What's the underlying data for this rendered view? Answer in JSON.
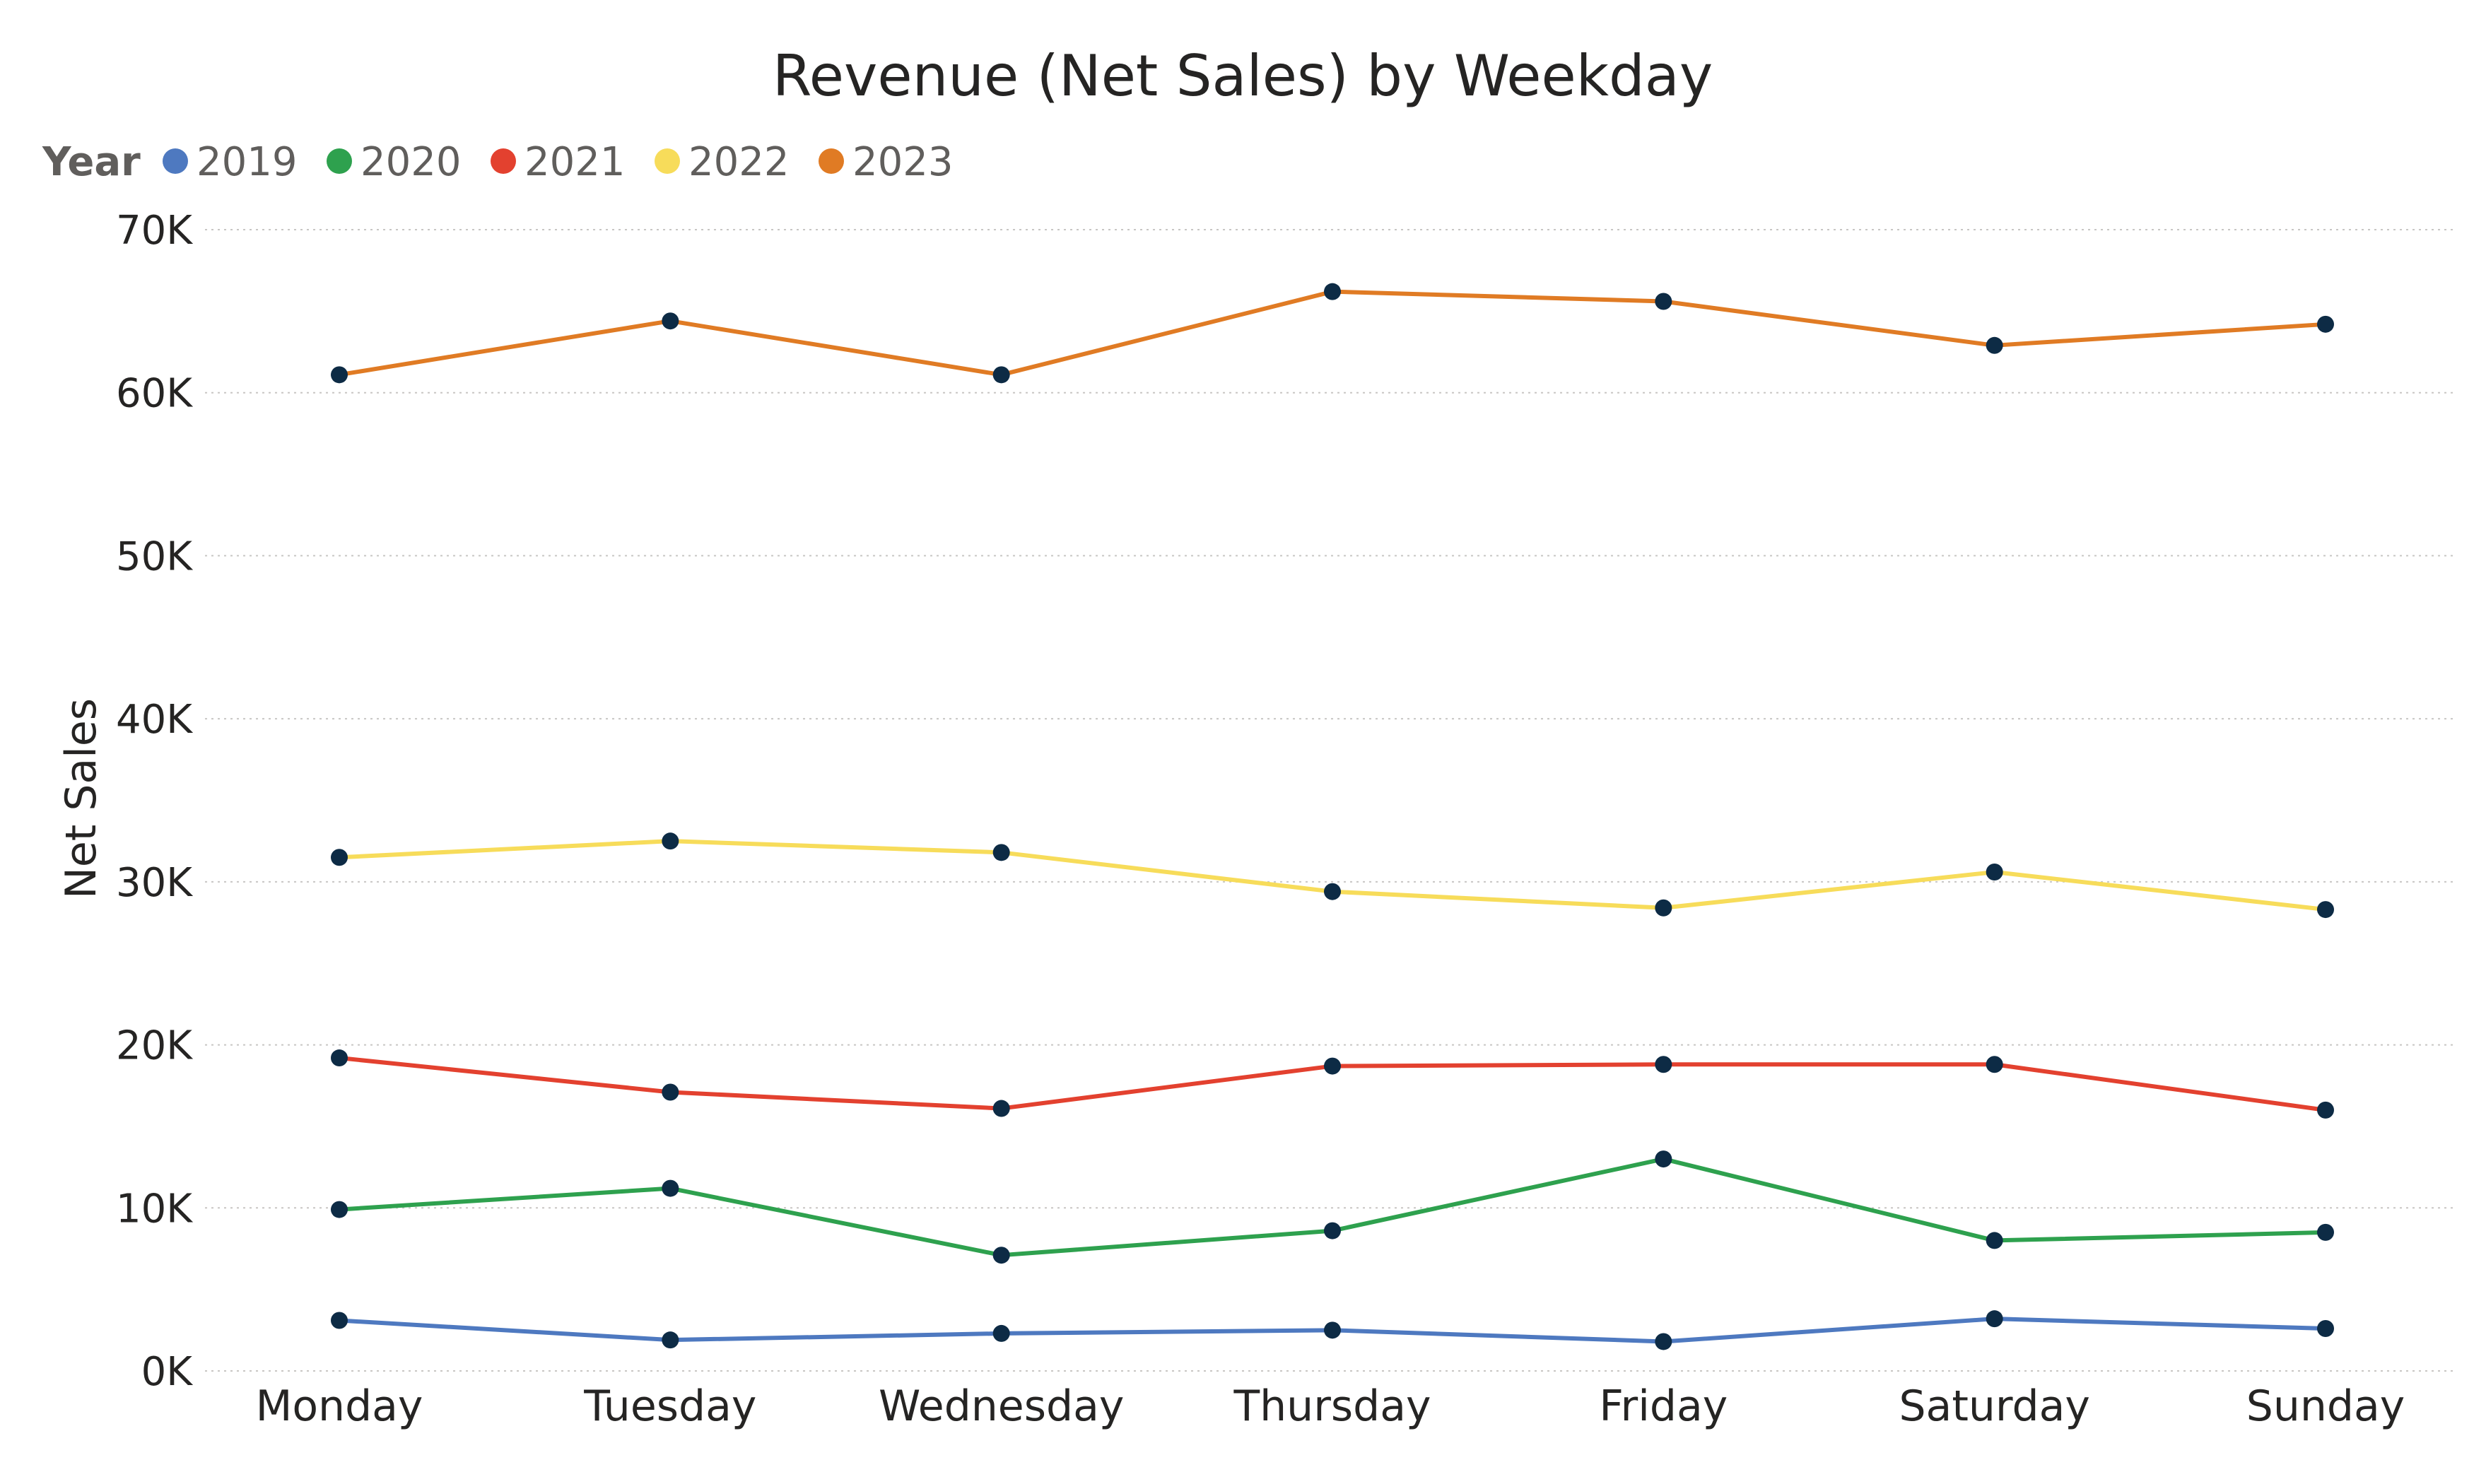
{
  "chart_data": {
    "type": "line",
    "title": "Revenue (Net Sales) by Weekday",
    "xlabel": "",
    "ylabel": "Net Sales",
    "legend_title": "Year",
    "legend_position": "top-left",
    "grid": true,
    "ylim": [
      0,
      70000
    ],
    "yticks": [
      0,
      10000,
      20000,
      30000,
      40000,
      50000,
      60000,
      70000
    ],
    "ytick_labels": [
      "0K",
      "10K",
      "20K",
      "30K",
      "40K",
      "50K",
      "60K",
      "70K"
    ],
    "categories": [
      "Monday",
      "Tuesday",
      "Wednesday",
      "Thursday",
      "Friday",
      "Saturday",
      "Sunday"
    ],
    "marker_color": "#0d2b45",
    "series": [
      {
        "name": "2019",
        "color": "#4e79c0",
        "values": [
          3100,
          1900,
          2300,
          2500,
          1800,
          3200,
          2600
        ]
      },
      {
        "name": "2020",
        "color": "#2ea14e",
        "values": [
          9900,
          11200,
          7100,
          8600,
          13000,
          8000,
          8500
        ]
      },
      {
        "name": "2021",
        "color": "#e3412f",
        "values": [
          19200,
          17100,
          16100,
          18700,
          18800,
          18800,
          16000
        ]
      },
      {
        "name": "2022",
        "color": "#f7dc5a",
        "values": [
          31500,
          32500,
          31800,
          29400,
          28400,
          30600,
          28300
        ]
      },
      {
        "name": "2023",
        "color": "#e07b24",
        "values": [
          61100,
          64400,
          61100,
          66200,
          65600,
          62900,
          64200
        ]
      }
    ]
  }
}
